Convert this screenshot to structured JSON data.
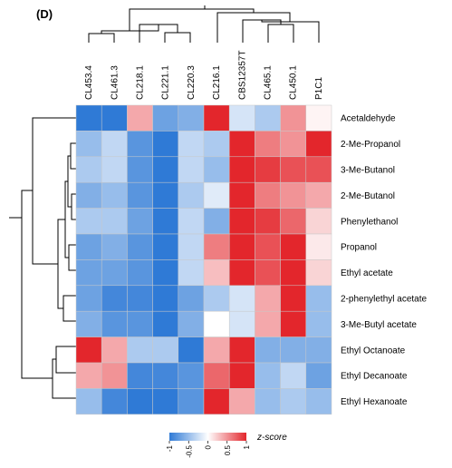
{
  "figure": {
    "panel_label": "(D)"
  },
  "chart_data": {
    "type": "heatmap",
    "columns": [
      "CL453.4",
      "CL461.3",
      "CL218.1",
      "CL221.1",
      "CL220.3",
      "CL216.1",
      "CBS12357T",
      "CL465.1",
      "CL450.1",
      "P1C1"
    ],
    "rows": [
      "Acetaldehyde",
      "2-Me-Propanol",
      "3-Me-Butanol",
      "2-Me-Butanol",
      "Phenylethanol",
      "Propanol",
      "Ethyl acetate",
      "2-phenylethyl acetate",
      "3-Me-Butyl acetate",
      "Ethyl Octanoate",
      "Ethyl Decanoate",
      "Ethyl Hexanoate"
    ],
    "values": [
      [
        -1.0,
        -1.0,
        0.4,
        -0.7,
        -0.6,
        1.0,
        -0.2,
        -0.4,
        0.5,
        0.05
      ],
      [
        -0.5,
        -0.3,
        -0.8,
        -1.0,
        -0.3,
        -0.4,
        1.0,
        0.6,
        0.5,
        1.0
      ],
      [
        -0.4,
        -0.3,
        -0.8,
        -1.0,
        -0.3,
        -0.5,
        1.0,
        0.9,
        0.8,
        0.8
      ],
      [
        -0.6,
        -0.5,
        -0.8,
        -1.0,
        -0.4,
        -0.15,
        1.0,
        0.6,
        0.5,
        0.4
      ],
      [
        -0.4,
        -0.4,
        -0.7,
        -1.0,
        -0.3,
        -0.6,
        1.0,
        0.9,
        0.7,
        0.2
      ],
      [
        -0.7,
        -0.6,
        -0.8,
        -1.0,
        -0.3,
        0.6,
        1.0,
        0.8,
        1.0,
        0.1
      ],
      [
        -0.7,
        -0.7,
        -0.8,
        -1.0,
        -0.3,
        0.3,
        1.0,
        0.8,
        1.0,
        0.2
      ],
      [
        -0.7,
        -0.9,
        -0.9,
        -1.0,
        -0.7,
        -0.4,
        -0.2,
        0.4,
        1.0,
        -0.5
      ],
      [
        -0.6,
        -0.8,
        -0.8,
        -1.0,
        -0.6,
        0.0,
        -0.2,
        0.4,
        1.0,
        -0.5
      ],
      [
        1.0,
        0.4,
        -0.4,
        -0.4,
        -1.0,
        0.4,
        1.0,
        -0.6,
        -0.6,
        -0.6
      ],
      [
        0.4,
        0.5,
        -0.9,
        -0.9,
        -0.8,
        0.7,
        1.0,
        -0.5,
        -0.3,
        -0.7
      ],
      [
        -0.5,
        -0.9,
        -1.0,
        -1.0,
        -0.8,
        1.0,
        0.4,
        -0.5,
        -0.4,
        -0.5
      ]
    ],
    "color_scale": {
      "low": "#2f7ad6",
      "mid": "#ffffff",
      "high": "#e3262c",
      "min": -1,
      "max": 1
    },
    "legend": {
      "title": "z-score",
      "ticks": [
        "-1",
        "-0.5",
        "0",
        "0.5",
        "1"
      ],
      "tick_values": [
        -1,
        -0.5,
        0,
        0.5,
        1
      ],
      "placement": "bottom-center"
    },
    "dendrograms": [
      "columns-top",
      "rows-left"
    ]
  }
}
